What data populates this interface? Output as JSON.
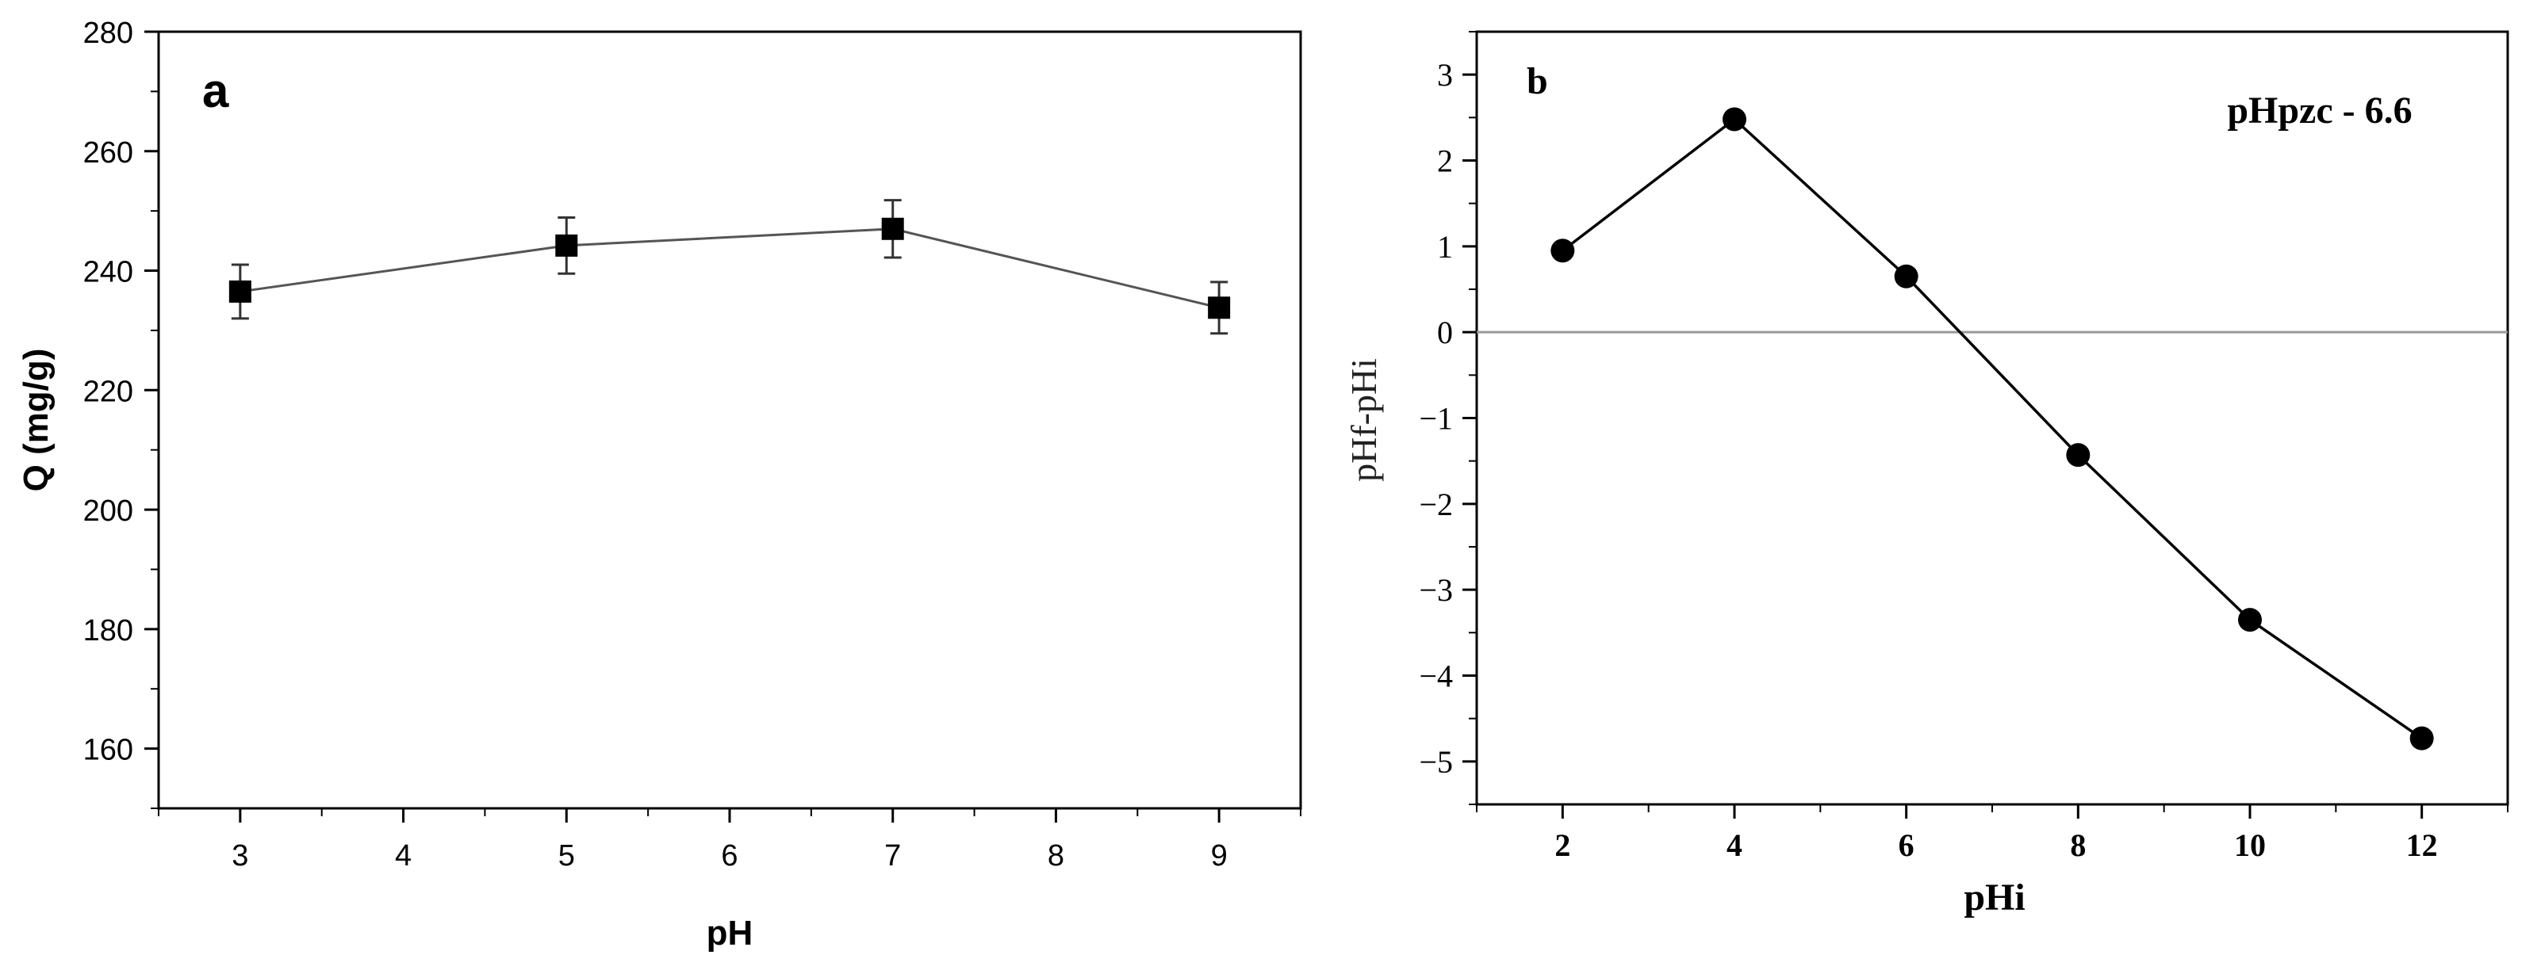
{
  "chart_data": [
    {
      "type": "line",
      "panel_label": "a",
      "xlabel": "pH",
      "ylabel": "Q (mg/g)",
      "xlim": [
        2.5,
        9.5
      ],
      "ylim": [
        150,
        280
      ],
      "xticks": [
        "3",
        "4",
        "5",
        "6",
        "7",
        "8",
        "9"
      ],
      "yticks": [
        "160",
        "180",
        "200",
        "220",
        "240",
        "260",
        "280"
      ],
      "series": [
        {
          "x": [
            3,
            5,
            7,
            9
          ],
          "y": [
            236.5,
            244.2,
            247.0,
            233.8
          ],
          "error": [
            4.5,
            4.7,
            4.8,
            4.3
          ],
          "marker": "square"
        }
      ],
      "grid": false,
      "colors": {
        "line": "#555555",
        "marker": "#000000",
        "frame": "#000000"
      }
    },
    {
      "type": "line",
      "panel_label": "b",
      "annotation": "pHpzc - 6.6",
      "xlabel": "pHi",
      "ylabel": "pHf-pHi",
      "xlim": [
        1,
        13
      ],
      "ylim": [
        -5.5,
        3.5
      ],
      "xticks": [
        "2",
        "4",
        "6",
        "8",
        "10",
        "12"
      ],
      "yticks": [
        "3",
        "2",
        "1",
        "0",
        "-1",
        "-2",
        "-3",
        "-4",
        "-5"
      ],
      "reference_line_y": 0,
      "series": [
        {
          "x": [
            2,
            4,
            6,
            8,
            10,
            12
          ],
          "y": [
            0.95,
            2.48,
            0.65,
            -1.43,
            -3.35,
            -4.73
          ],
          "marker": "circle"
        }
      ],
      "grid": false,
      "colors": {
        "line": "#000000",
        "marker": "#000000",
        "zero_line": "#999999",
        "frame": "#000000"
      }
    }
  ]
}
